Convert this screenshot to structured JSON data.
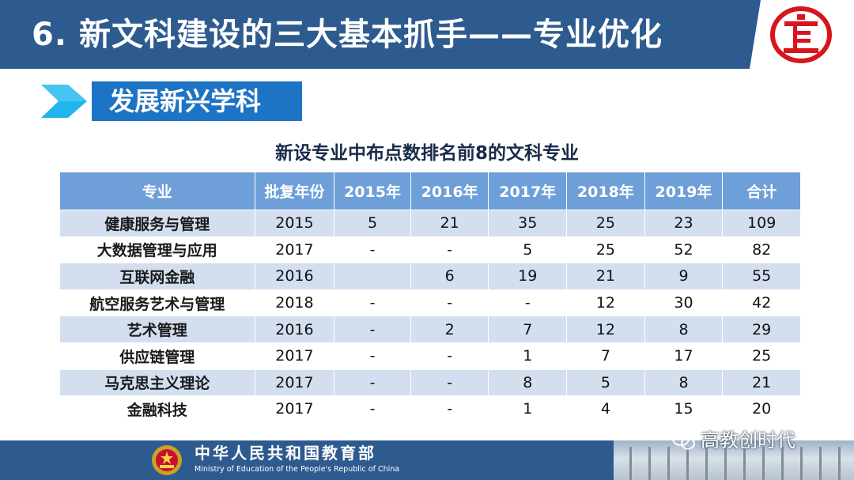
{
  "header": {
    "title": "6. 新文科建设的三大基本抓手——专业优化",
    "logo_text": "亡"
  },
  "section": {
    "label": "发展新兴学科"
  },
  "table": {
    "title": "新设专业中布点数排名前8的文科专业",
    "columns": [
      "专业",
      "批复年份",
      "2015年",
      "2016年",
      "2017年",
      "2018年",
      "2019年",
      "合计"
    ],
    "rows": [
      [
        "健康服务与管理",
        "2015",
        "5",
        "21",
        "35",
        "25",
        "23",
        "109"
      ],
      [
        "大数据管理与应用",
        "2017",
        "-",
        "-",
        "5",
        "25",
        "52",
        "82"
      ],
      [
        "互联网金融",
        "2016",
        "",
        "6",
        "19",
        "21",
        "9",
        "55"
      ],
      [
        "航空服务艺术与管理",
        "2018",
        "-",
        "-",
        "-",
        "12",
        "30",
        "42"
      ],
      [
        "艺术管理",
        "2016",
        "-",
        "2",
        "7",
        "12",
        "8",
        "29"
      ],
      [
        "供应链管理",
        "2017",
        "-",
        "-",
        "1",
        "7",
        "17",
        "25"
      ],
      [
        "马克思主义理论",
        "2017",
        "-",
        "-",
        "8",
        "5",
        "8",
        "21"
      ],
      [
        "金融科技",
        "2017",
        "-",
        "-",
        "1",
        "4",
        "15",
        "20"
      ]
    ]
  },
  "footer": {
    "ministry_cn": "中华人民共和国教育部",
    "ministry_en": "Ministry of Education of the People's Republic of China"
  },
  "watermark": {
    "text": "高教创时代",
    "icon": "wechat-icon"
  },
  "colors": {
    "header_bg": "#2e5b8f",
    "section_bg": "#1d73c4",
    "table_header_bg": "#6e9fd8",
    "row_alt_bg": "#d3deef",
    "logo_red": "#d8141c",
    "arrow_cyan": "#22b4ec"
  }
}
